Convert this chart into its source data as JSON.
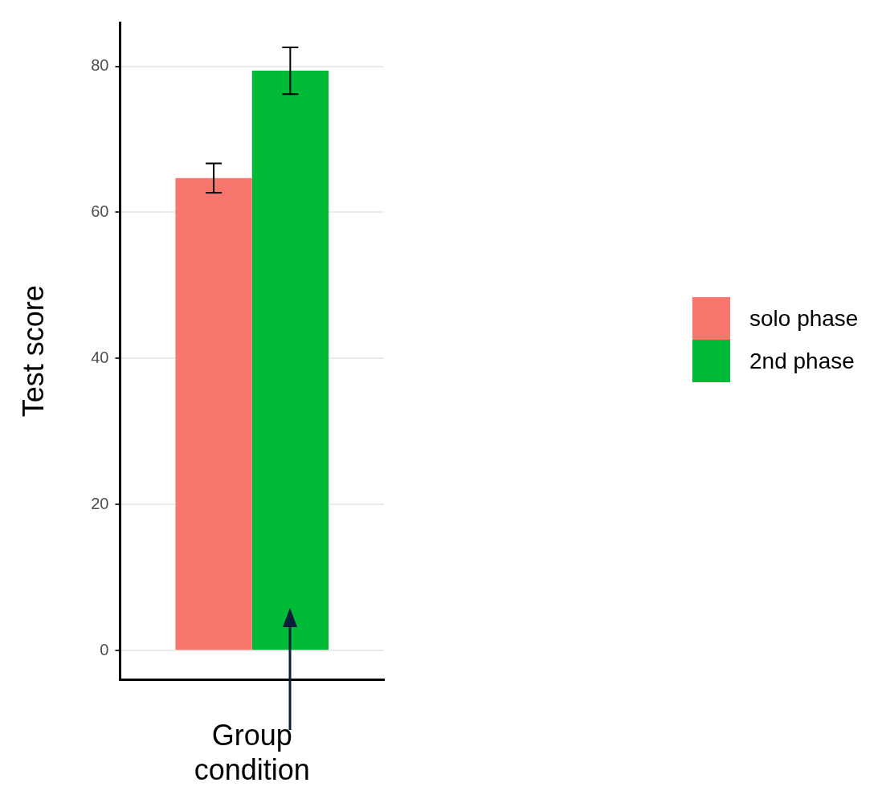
{
  "chart_data": {
    "type": "bar",
    "categories": [
      null
    ],
    "series": [
      {
        "name": "solo phase",
        "color": "#f8766d",
        "values": [
          64.7
        ],
        "errors": [
          2
        ]
      },
      {
        "name": "2nd phase",
        "color": "#00ba38",
        "values": [
          79.4
        ],
        "errors": [
          3.2
        ]
      }
    ],
    "ylabel": "Test score",
    "xlabel": "Group condition",
    "ylim": [
      -4,
      86
    ],
    "yticks": [
      0,
      20,
      40,
      60,
      80
    ],
    "grid": "y",
    "legend": "right"
  }
}
